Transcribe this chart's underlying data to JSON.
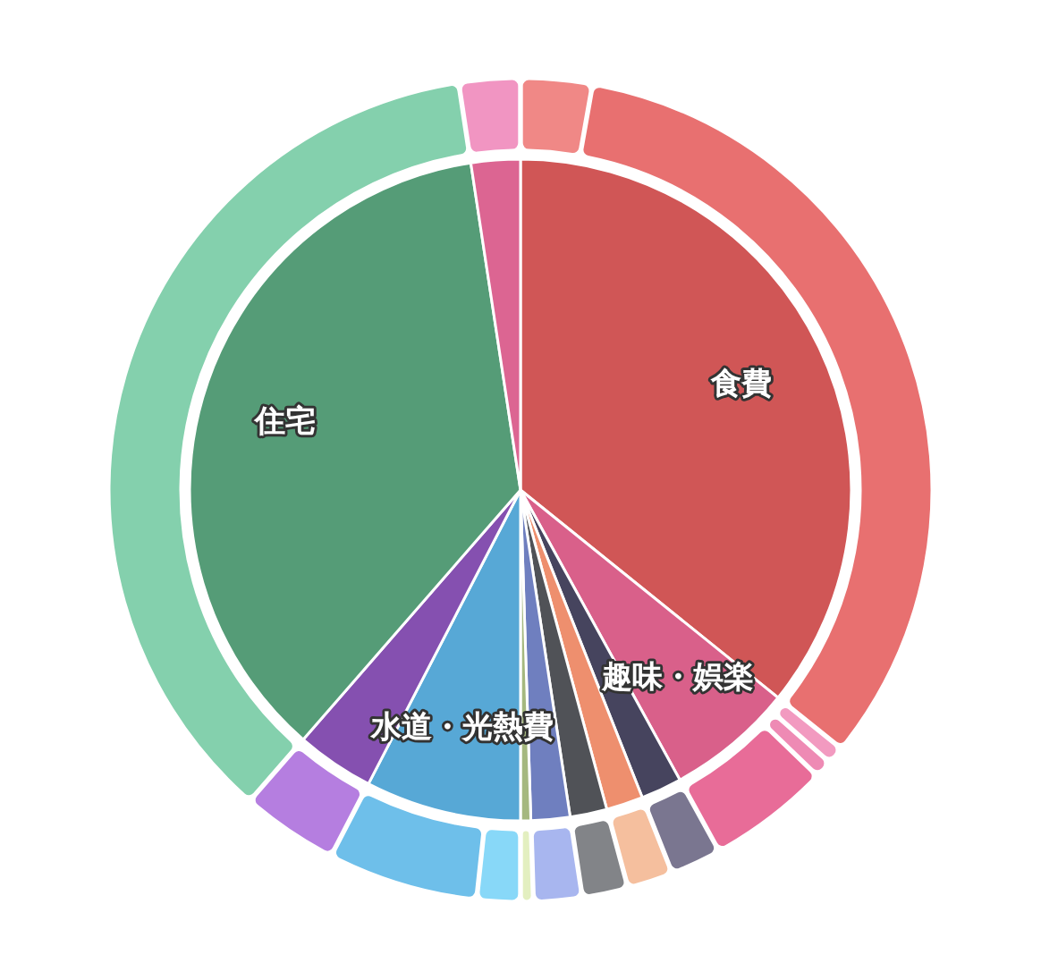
{
  "chart_data": {
    "type": "pie",
    "categories": [
      "食費",
      null,
      "趣味・娯楽",
      null,
      null,
      null,
      null,
      null,
      null,
      null,
      "水道・光熱費",
      null,
      null,
      "住宅",
      null
    ],
    "series": [
      {
        "values": [
          35.8,
          null,
          6.2,
          null,
          null,
          2.0,
          1.8,
          1.8,
          1.9,
          0.5,
          7.6,
          null,
          3.8,
          36.2,
          2.4
        ],
        "colors": [
          "#d05656",
          "#d05656",
          "#d9608a",
          "#d9608a",
          "#d9608a",
          "#46445e",
          "#ee8f6e",
          "#505257",
          "#6f7fbf",
          "#a5b87f",
          "#57a8d6",
          "#57a8d6",
          "#8550b0",
          "#559c77",
          "#dc6592"
        ]
      },
      {
        "type": "donut",
        "values": [
          2.8,
          33.0,
          0.7,
          0.7,
          4.8,
          2.0,
          1.8,
          1.8,
          1.9,
          0.5,
          1.7,
          5.9,
          3.8,
          36.2,
          2.4
        ],
        "colors": [
          "#f08886",
          "#e87070",
          "#f29ac0",
          "#ee8ab4",
          "#e86c98",
          "#7a7690",
          "#f5bf9e",
          "#828488",
          "#a8b6ef",
          "#e3efc0",
          "#88d8f8",
          "#6ebfea",
          "#b57ee0",
          "#84d0ad",
          "#f195c2"
        ]
      }
    ]
  }
}
